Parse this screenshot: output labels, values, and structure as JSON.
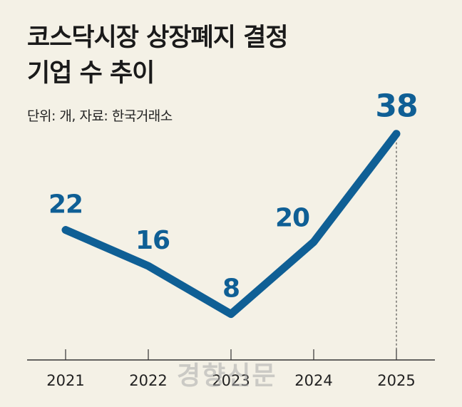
{
  "title_line1": "코스닥시장 상장폐지 결정",
  "title_line2": "기업 수 추이",
  "unit_note": "단위: 개, 자료: 한국거래소",
  "watermark": "경향신문",
  "colors": {
    "line": "#0f5f95",
    "label": "#0f5f95",
    "background": "#f4f1e6",
    "axis": "#333333"
  },
  "chart_data": {
    "type": "line",
    "title": "코스닥시장 상장폐지 결정 기업 수 추이",
    "categories": [
      "2021",
      "2022",
      "2023",
      "2024",
      "2025"
    ],
    "series": [
      {
        "values": [
          22,
          16,
          8,
          20,
          38
        ]
      }
    ],
    "data_labels": [
      "22",
      "16",
      "8",
      "20",
      "38"
    ],
    "ylim": [
      0,
      42
    ],
    "grid": false,
    "legend": "none",
    "highlight_last": true
  }
}
